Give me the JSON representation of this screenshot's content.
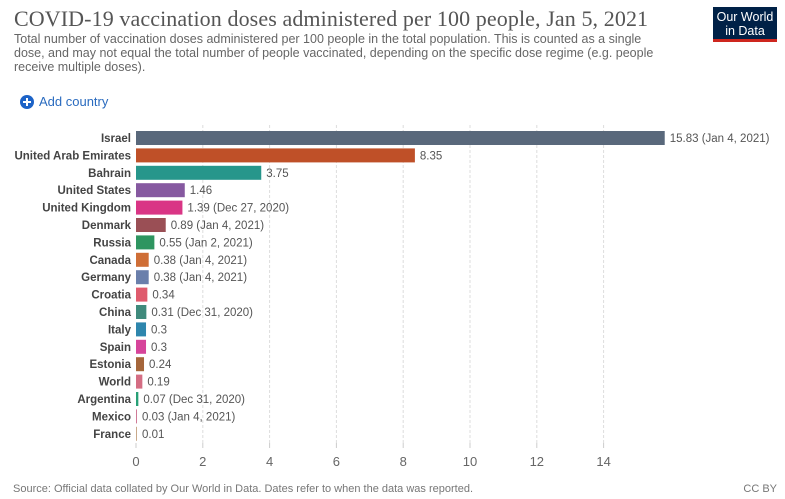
{
  "header": {
    "title": "COVID-19 vaccination doses administered per 100 people, Jan 5, 2021",
    "subtitle": "Total number of vaccination doses administered per 100 people in the total population. This is counted as a single dose, and may not equal the total number of people vaccinated, depending on the specific dose regime (e.g. people receive multiple doses).",
    "logo_line1": "Our World",
    "logo_line2": "in Data"
  },
  "controls": {
    "add_country_label": "Add country",
    "add_icon": "plus-circle-icon"
  },
  "footer": {
    "source": "Source: Official data collated by Our World in Data. Dates refer to when the data was reported.",
    "license": "CC BY"
  },
  "chart_data": {
    "type": "bar",
    "orientation": "horizontal",
    "title": "COVID-19 vaccination doses administered per 100 people, Jan 5, 2021",
    "xlabel": "",
    "ylabel": "",
    "xlim": [
      0,
      16
    ],
    "x_ticks": [
      0,
      2,
      4,
      6,
      8,
      10,
      12,
      14
    ],
    "grid": "vertical dashed",
    "categories": [
      "Israel",
      "United Arab Emirates",
      "Bahrain",
      "United States",
      "United Kingdom",
      "Denmark",
      "Russia",
      "Canada",
      "Germany",
      "Croatia",
      "China",
      "Italy",
      "Spain",
      "Estonia",
      "World",
      "Argentina",
      "Mexico",
      "France"
    ],
    "values": [
      15.83,
      8.35,
      3.75,
      1.46,
      1.39,
      0.89,
      0.55,
      0.38,
      0.38,
      0.34,
      0.31,
      0.3,
      0.3,
      0.24,
      0.19,
      0.07,
      0.03,
      0.01
    ],
    "value_labels": [
      "15.83 (Jan 4, 2021)",
      "8.35",
      "3.75",
      "1.46",
      "1.39 (Dec 27, 2020)",
      "0.89 (Jan 4, 2021)",
      "0.55 (Jan 2, 2021)",
      "0.38 (Jan 4, 2021)",
      "0.38 (Jan 4, 2021)",
      "0.34",
      "0.31 (Dec 31, 2020)",
      "0.3",
      "0.3",
      "0.24",
      "0.19",
      "0.07 (Dec 31, 2020)",
      "0.03 (Jan 4, 2021)",
      "0.01"
    ],
    "colors": [
      "#59687b",
      "#bf5028",
      "#27968b",
      "#8659a0",
      "#d93585",
      "#9a4f55",
      "#2e9560",
      "#cf6e36",
      "#6a7fab",
      "#df5b6d",
      "#3f8a7c",
      "#2e86ad",
      "#d6449a",
      "#a5663b",
      "#d46d83",
      "#27a076",
      "#d07a97",
      "#c9a98a"
    ]
  }
}
